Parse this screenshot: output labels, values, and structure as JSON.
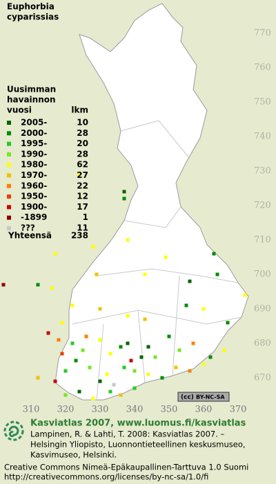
{
  "title_lines": [
    "Euphorbia",
    "cyparissias"
  ],
  "legend": {
    "heading_lines": [
      "Uusimman",
      "havainnon",
      "vuosi"
    ],
    "count_heading": "lkm",
    "rows": [
      {
        "label": "2005-",
        "count": 10,
        "color": "#006400"
      },
      {
        "label": "2000-",
        "count": 28,
        "color": "#008c00"
      },
      {
        "label": "1995-",
        "count": 20,
        "color": "#22cc22"
      },
      {
        "label": "1990-",
        "count": 28,
        "color": "#77e622"
      },
      {
        "label": "1980-",
        "count": 62,
        "color": "#ffff00"
      },
      {
        "label": "1970-",
        "count": 27,
        "color": "#f0c000"
      },
      {
        "label": "1960-",
        "count": 22,
        "color": "#ff7f00"
      },
      {
        "label": "1950-",
        "count": 12,
        "color": "#e84000"
      },
      {
        "label": "1900-",
        "count": 17,
        "color": "#cc0000"
      },
      {
        "label": "-1899",
        "count": 1,
        "color": "#8b0000"
      },
      {
        "label": "???",
        "count": 11,
        "color": "#c8c8c8"
      }
    ],
    "total_label": "Yhteensä",
    "total": 238
  },
  "yticks": [
    770,
    760,
    750,
    740,
    730,
    720,
    710,
    700,
    690,
    680,
    670
  ],
  "xticks": [
    310,
    320,
    330,
    340,
    350,
    360,
    370
  ],
  "points": [
    [
      337,
      724,
      0
    ],
    [
      337,
      722,
      1
    ],
    [
      324,
      729,
      4
    ],
    [
      317,
      706,
      4
    ],
    [
      328,
      708,
      4
    ],
    [
      338,
      710,
      4
    ],
    [
      349,
      705,
      4
    ],
    [
      363,
      706,
      1
    ],
    [
      302,
      697,
      9
    ],
    [
      312,
      697,
      1
    ],
    [
      316,
      696,
      4
    ],
    [
      329,
      700,
      5
    ],
    [
      343,
      700,
      4
    ],
    [
      356,
      698,
      0
    ],
    [
      364,
      700,
      1
    ],
    [
      372,
      694,
      4
    ],
    [
      319,
      686,
      4
    ],
    [
      322,
      691,
      4
    ],
    [
      330,
      690,
      5
    ],
    [
      338,
      688,
      4
    ],
    [
      343,
      687,
      5
    ],
    [
      355,
      691,
      1
    ],
    [
      360,
      690,
      4
    ],
    [
      367,
      686,
      1
    ],
    [
      315,
      683,
      8
    ],
    [
      318,
      681,
      6
    ],
    [
      322,
      680,
      2
    ],
    [
      326,
      682,
      6
    ],
    [
      330,
      681,
      4
    ],
    [
      336,
      679,
      1
    ],
    [
      338,
      680,
      0
    ],
    [
      344,
      679,
      0
    ],
    [
      350,
      682,
      1
    ],
    [
      353,
      678,
      3
    ],
    [
      357,
      680,
      6
    ],
    [
      362,
      676,
      1
    ],
    [
      366,
      678,
      4
    ],
    [
      312,
      670,
      5
    ],
    [
      317,
      669,
      8
    ],
    [
      320,
      672,
      2
    ],
    [
      323,
      675,
      1
    ],
    [
      327,
      673,
      3
    ],
    [
      330,
      669,
      0
    ],
    [
      332,
      671,
      4
    ],
    [
      334,
      668,
      10
    ],
    [
      337,
      673,
      2
    ],
    [
      340,
      672,
      3
    ],
    [
      344,
      671,
      4
    ],
    [
      348,
      670,
      1
    ],
    [
      352,
      673,
      5
    ],
    [
      356,
      672,
      6
    ],
    [
      360,
      674,
      4
    ],
    [
      320,
      665,
      3
    ],
    [
      324,
      666,
      0
    ],
    [
      328,
      664,
      4
    ],
    [
      333,
      666,
      2
    ],
    [
      336,
      665,
      5
    ],
    [
      340,
      667,
      2
    ],
    [
      342,
      676,
      0
    ],
    [
      346,
      676,
      3
    ],
    [
      319,
      677,
      7
    ],
    [
      325,
      678,
      3
    ],
    [
      333,
      677,
      4
    ],
    [
      339,
      675,
      8
    ]
  ],
  "badge": "BY-NC-SA",
  "footer": {
    "heading": "Kasviatlas 2007, www.luomus.fi/kasviatlas",
    "citation_lines": [
      "Lampinen, R. & Lahti, T. 2008: Kasviatlas 2007. –",
      "Helsingin Yliopisto, Luonnontieteellinen keskusmuseo,",
      "Kasvimuseo, Helsinki."
    ],
    "license_lines": [
      "Creative Commons Nimeä-Epäkaupallinen-Tarttuva 1.0 Suomi",
      "http://creativecommons.org/licenses/by-nc-sa/1.0/fi"
    ]
  }
}
